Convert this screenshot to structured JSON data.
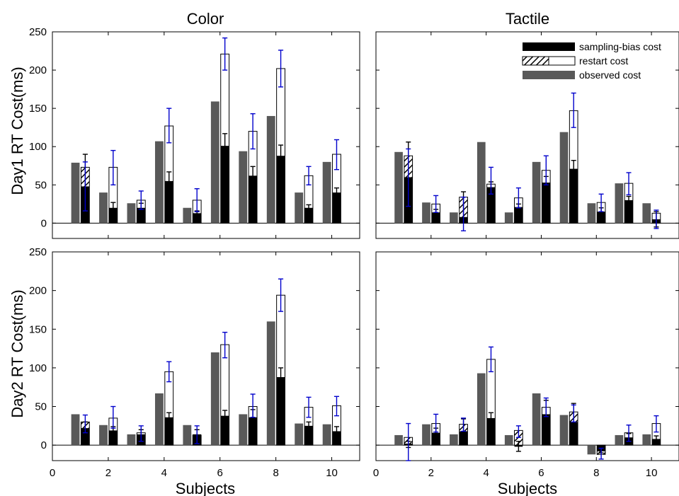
{
  "legend": {
    "items": [
      {
        "label": "sampling-bias cost",
        "kind": "sampling"
      },
      {
        "label": "restart cost",
        "kind": "restart"
      },
      {
        "label": "observed cost",
        "kind": "observed"
      }
    ],
    "placement": "top-right of Day1 Tactile panel"
  },
  "colors": {
    "observed": "#595959",
    "sampling": "#000000",
    "restart_fill": "#ffffff",
    "error_bar": "#0000cc",
    "error_bar_black": "#000000"
  },
  "chart_data": [
    {
      "type": "bar",
      "title": "Color",
      "xlabel": "",
      "ylabel": "Day1 RT Cost(ms)",
      "ylim": [
        -20,
        250
      ],
      "xlim": [
        0,
        11
      ],
      "yticks": [
        0,
        50,
        100,
        150,
        200,
        250
      ],
      "xticks": [
        0,
        2,
        4,
        6,
        8,
        10
      ],
      "grid": false,
      "x": [
        1,
        2,
        3,
        4,
        5,
        6,
        7,
        8,
        9,
        10
      ],
      "observed": [
        79,
        40,
        26,
        107,
        20,
        159,
        94,
        140,
        40,
        80
      ],
      "sampling_bias": [
        48,
        20,
        20,
        55,
        13,
        101,
        62,
        88,
        20,
        40
      ],
      "restart": [
        73,
        73,
        30,
        127,
        30,
        221,
        120,
        202,
        62,
        90
      ],
      "restart_hatched": [
        true,
        false,
        false,
        false,
        false,
        false,
        false,
        false,
        false,
        false
      ],
      "sampling_err": [
        [
          38,
          90
        ],
        [
          13,
          27
        ],
        [
          14,
          26
        ],
        [
          43,
          67
        ],
        [
          10,
          16
        ],
        [
          85,
          117
        ],
        [
          50,
          74
        ],
        [
          74,
          102
        ],
        [
          16,
          24
        ],
        [
          34,
          46
        ]
      ],
      "restart_err": [
        [
          16,
          80
        ],
        [
          50,
          95
        ],
        [
          18,
          42
        ],
        [
          105,
          150
        ],
        [
          15,
          45
        ],
        [
          200,
          242
        ],
        [
          97,
          143
        ],
        [
          178,
          226
        ],
        [
          50,
          74
        ],
        [
          70,
          109
        ]
      ]
    },
    {
      "type": "bar",
      "title": "Tactile",
      "xlabel": "",
      "ylabel": "",
      "ylim": [
        -20,
        250
      ],
      "xlim": [
        0,
        11
      ],
      "yticks": [
        0,
        50,
        100,
        150,
        200,
        250
      ],
      "xticks": [
        0,
        2,
        4,
        6,
        8,
        10
      ],
      "grid": false,
      "x": [
        1,
        2,
        3,
        4,
        5,
        6,
        7,
        8,
        9,
        10
      ],
      "observed": [
        93,
        27,
        14,
        106,
        14,
        80,
        119,
        26,
        52,
        26
      ],
      "sampling_bias": [
        60,
        14,
        8,
        47,
        21,
        53,
        71,
        15,
        30,
        5
      ],
      "restart": [
        88,
        25,
        34,
        51,
        33,
        69,
        147,
        27,
        52,
        13
      ],
      "restart_hatched": [
        true,
        false,
        true,
        false,
        false,
        false,
        false,
        false,
        false,
        false
      ],
      "sampling_err": [
        [
          55,
          106
        ],
        [
          10,
          18
        ],
        [
          3,
          41
        ],
        [
          40,
          54
        ],
        [
          17,
          25
        ],
        [
          45,
          61
        ],
        [
          60,
          82
        ],
        [
          10,
          20
        ],
        [
          25,
          35
        ],
        [
          -5,
          15
        ]
      ],
      "restart_err": [
        [
          22,
          97
        ],
        [
          14,
          36
        ],
        [
          -10,
          34
        ],
        [
          38,
          73
        ],
        [
          20,
          46
        ],
        [
          50,
          88
        ],
        [
          125,
          170
        ],
        [
          15,
          38
        ],
        [
          37,
          66
        ],
        [
          -7,
          17
        ]
      ]
    },
    {
      "type": "bar",
      "title": "",
      "xlabel": "Subjects",
      "ylabel": "Day2 RT Cost(ms)",
      "ylim": [
        -20,
        250
      ],
      "xlim": [
        0,
        11
      ],
      "yticks": [
        0,
        50,
        100,
        150,
        200,
        250
      ],
      "xticks": [
        0,
        2,
        4,
        6,
        8,
        10
      ],
      "grid": false,
      "x": [
        1,
        2,
        3,
        4,
        5,
        6,
        7,
        8,
        9,
        10
      ],
      "observed": [
        40,
        26,
        14,
        67,
        26,
        120,
        40,
        160,
        28,
        27
      ],
      "sampling_bias": [
        22,
        19,
        14,
        36,
        14,
        38,
        36,
        88,
        25,
        18
      ],
      "restart": [
        30,
        35,
        16,
        95,
        13,
        130,
        50,
        194,
        49,
        51
      ],
      "restart_hatched": [
        true,
        false,
        false,
        false,
        false,
        false,
        false,
        false,
        false,
        false
      ],
      "sampling_err": [
        [
          16,
          30
        ],
        [
          14,
          24
        ],
        [
          8,
          20
        ],
        [
          31,
          42
        ],
        [
          9,
          20
        ],
        [
          31,
          45
        ],
        [
          28,
          46
        ],
        [
          76,
          100
        ],
        [
          20,
          30
        ],
        [
          13,
          24
        ]
      ],
      "restart_err": [
        [
          16,
          39
        ],
        [
          22,
          50
        ],
        [
          5,
          25
        ],
        [
          82,
          108
        ],
        [
          2,
          25
        ],
        [
          113,
          146
        ],
        [
          36,
          66
        ],
        [
          173,
          215
        ],
        [
          36,
          62
        ],
        [
          38,
          63
        ]
      ]
    },
    {
      "type": "bar",
      "title": "",
      "xlabel": "Subjects",
      "ylabel": "",
      "ylim": [
        -20,
        250
      ],
      "xlim": [
        0,
        11
      ],
      "yticks": [
        0,
        50,
        100,
        150,
        200,
        250
      ],
      "xticks": [
        0,
        2,
        4,
        6,
        8,
        10
      ],
      "grid": false,
      "x": [
        1,
        2,
        3,
        4,
        5,
        6,
        7,
        8,
        9,
        10
      ],
      "observed": [
        13,
        27,
        14,
        93,
        13,
        67,
        39,
        -12,
        13,
        14
      ],
      "sampling_bias": [
        2,
        16,
        18,
        35,
        -2,
        40,
        30,
        -8,
        10,
        8
      ],
      "restart": [
        10,
        28,
        27,
        111,
        19,
        49,
        43,
        -12,
        16,
        28
      ],
      "restart_hatched": [
        true,
        false,
        true,
        false,
        true,
        false,
        true,
        true,
        false,
        false
      ],
      "sampling_err": [
        [
          -3,
          5
        ],
        [
          10,
          22
        ],
        [
          12,
          34
        ],
        [
          29,
          42
        ],
        [
          -8,
          5
        ],
        [
          30,
          58
        ],
        [
          22,
          54
        ],
        [
          -10,
          -6
        ],
        [
          5,
          15
        ],
        [
          4,
          12
        ]
      ],
      "restart_err": [
        [
          -20,
          28
        ],
        [
          17,
          40
        ],
        [
          18,
          35
        ],
        [
          95,
          127
        ],
        [
          10,
          25
        ],
        [
          37,
          61
        ],
        [
          30,
          52
        ],
        [
          -18,
          -4
        ],
        [
          5,
          26
        ],
        [
          17,
          38
        ]
      ]
    }
  ]
}
